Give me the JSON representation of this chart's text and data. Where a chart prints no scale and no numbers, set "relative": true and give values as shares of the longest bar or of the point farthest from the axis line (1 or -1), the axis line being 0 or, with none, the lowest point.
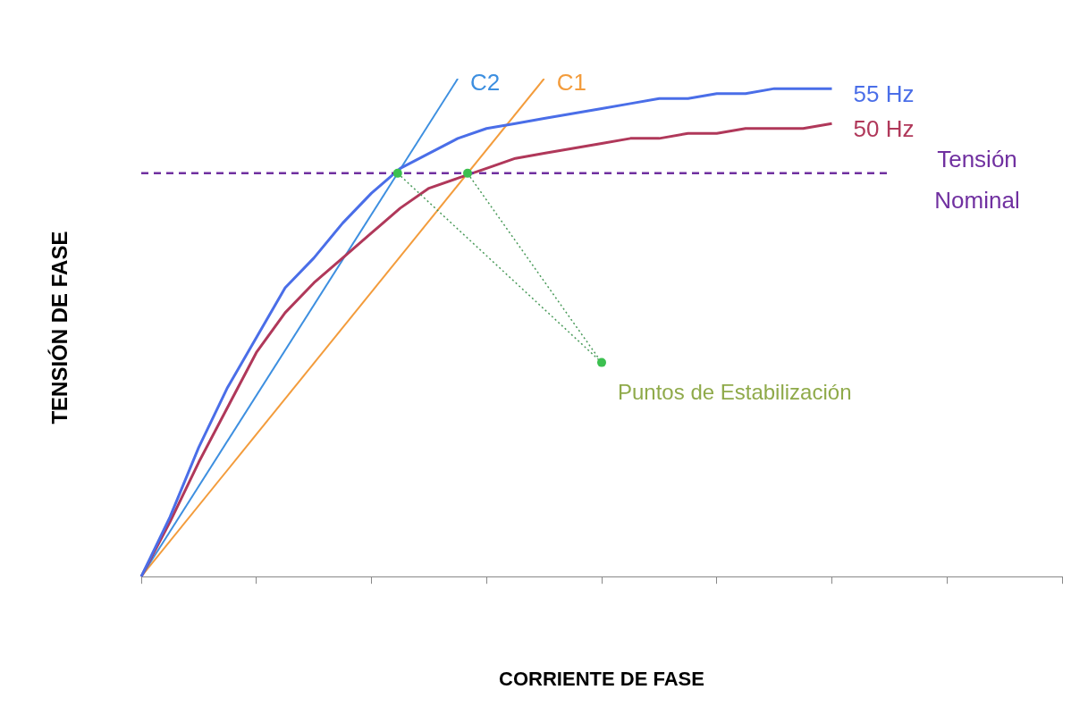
{
  "chart_data": {
    "type": "line",
    "relative": true,
    "xlabel": "CORRIENTE DE FASE",
    "ylabel": "TENSIÓN DE FASE",
    "legend": false,
    "grid": false,
    "marker": "none",
    "categories": [
      null,
      null,
      null,
      null,
      null,
      null,
      null,
      null,
      null,
      null,
      null,
      null,
      null,
      null,
      null,
      null,
      null,
      null,
      null,
      null,
      null,
      null,
      null,
      null,
      null,
      null,
      null,
      null,
      null,
      null,
      null,
      null,
      null
    ],
    "series": [
      {
        "name": "55 Hz",
        "color": "#4a6ee8",
        "values": [
          0,
          0.12,
          0.26,
          0.38,
          0.48,
          0.58,
          0.64,
          0.71,
          0.77,
          0.82,
          0.85,
          0.88,
          0.9,
          0.91,
          0.92,
          0.93,
          0.94,
          0.95,
          0.96,
          0.96,
          0.97,
          0.97,
          0.98,
          0.98,
          0.98,
          null,
          null,
          null,
          null,
          null,
          null,
          null,
          null
        ]
      },
      {
        "name": "50 Hz",
        "color": "#b0385a",
        "values": [
          0,
          0.11,
          0.23,
          0.34,
          0.45,
          0.53,
          0.59,
          0.64,
          0.69,
          0.74,
          0.78,
          0.8,
          0.82,
          0.84,
          0.85,
          0.86,
          0.87,
          0.88,
          0.88,
          0.89,
          0.89,
          0.9,
          0.9,
          0.9,
          0.91,
          null,
          null,
          null,
          null,
          null,
          null,
          null,
          null
        ]
      },
      {
        "name": "C2",
        "color": "#3d8fe0",
        "values": [
          0,
          null,
          null,
          null,
          null,
          null,
          null,
          null,
          null,
          null,
          null,
          1,
          null,
          null,
          null,
          null,
          null,
          null,
          null,
          null,
          null,
          null,
          null,
          null,
          null,
          null,
          null,
          null,
          null,
          null,
          null,
          null,
          null
        ]
      },
      {
        "name": "C1",
        "color": "#f39c3c",
        "values": [
          0,
          null,
          null,
          null,
          null,
          null,
          null,
          null,
          null,
          null,
          null,
          null,
          null,
          null,
          1,
          null,
          null,
          null,
          null,
          null,
          null,
          null,
          null,
          null,
          null,
          null,
          null,
          null,
          null,
          null,
          null,
          null,
          null
        ]
      }
    ],
    "annotations": [
      "Puntos de Estabilización"
    ],
    "ref_lines": [
      {
        "axis": "y",
        "value": 0.81,
        "label": "Tensión Nominal",
        "color": "#7030a0",
        "line_style": "dashed"
      }
    ]
  }
}
